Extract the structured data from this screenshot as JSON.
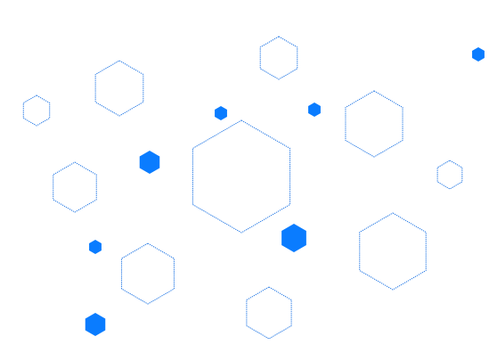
{
  "colors": {
    "background": "#ffffff",
    "outline": "#2f7fe6",
    "fill": "#0a7cff"
  },
  "shapes": {
    "outline_hexagon_icon": "hexagon-outline-icon",
    "filled_hexagon_icon": "hexagon-filled-icon"
  }
}
